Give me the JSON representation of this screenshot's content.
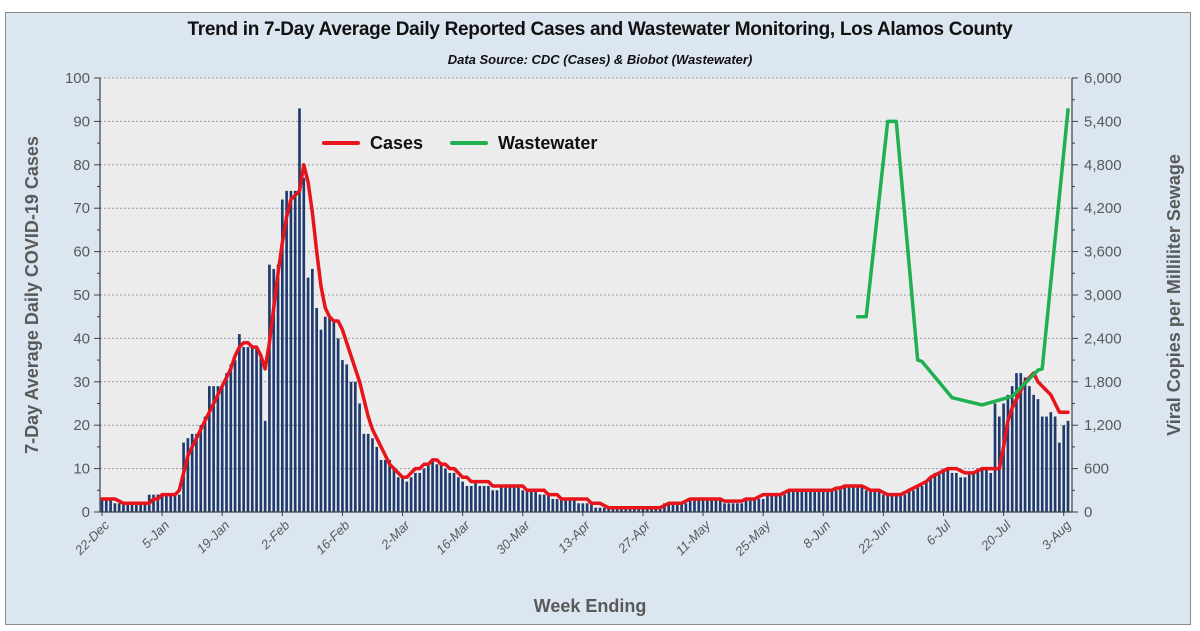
{
  "chart_data": {
    "type": "bar",
    "title": "Trend in 7-Day Average Daily Reported Cases and Wastewater Monitoring, Los Alamos County",
    "subtitle": "Data Source: CDC (Cases) & Biobot (Wastewater)",
    "xlabel": "Week Ending",
    "ylabel": "7-Day Average Daily COVID-19 Cases",
    "y2label": "Viral Copies per Milliliter Sewage",
    "ylim": [
      0,
      100
    ],
    "y2lim": [
      0,
      6000
    ],
    "yticks": [
      "0",
      "10",
      "20",
      "30",
      "40",
      "50",
      "60",
      "70",
      "80",
      "90",
      "100"
    ],
    "y2ticks": [
      "0",
      "600",
      "1,200",
      "1,800",
      "2,400",
      "3,000",
      "3,600",
      "4,200",
      "4,800",
      "5,400",
      "6,000"
    ],
    "xticks": [
      "22-Dec",
      "5-Jan",
      "19-Jan",
      "2-Feb",
      "16-Feb",
      "2-Mar",
      "16-Mar",
      "30-Mar",
      "13-Apr",
      "27-Apr",
      "11-May",
      "25-May",
      "8-Jun",
      "22-Jun",
      "6-Jul",
      "20-Jul",
      "3-Aug"
    ],
    "grid": true,
    "legend": {
      "placement": "top-left",
      "entries": [
        {
          "name": "Cases",
          "color": "#e8141b"
        },
        {
          "name": "Wastewater",
          "color": "#1fb04f"
        }
      ]
    },
    "start_date": "22-Dec",
    "end_date": "3-Aug",
    "bars": {
      "name": "Daily Cases",
      "color": "#1f3a6e",
      "values": [
        3,
        3,
        3,
        2,
        2,
        2,
        2,
        2,
        2,
        2,
        2,
        4,
        4,
        4,
        4,
        4,
        4,
        4,
        4,
        16,
        17,
        18,
        18,
        20,
        22,
        29,
        29,
        29,
        29,
        32,
        34,
        35,
        41,
        38,
        38,
        38,
        38,
        36,
        21,
        57,
        56,
        57,
        72,
        74,
        74,
        74,
        93,
        77,
        54,
        56,
        47,
        42,
        45,
        45,
        44,
        40,
        35,
        34,
        30,
        30,
        25,
        18,
        18,
        17,
        15,
        12,
        12,
        12,
        10,
        8,
        8,
        7,
        8,
        9,
        9,
        10,
        11,
        12,
        11,
        11,
        10,
        9,
        9,
        8,
        7,
        6,
        6,
        7,
        6,
        6,
        6,
        5,
        5,
        6,
        6,
        6,
        6,
        6,
        5,
        5,
        5,
        5,
        4,
        4,
        4,
        3,
        3,
        3,
        3,
        3,
        3,
        2,
        2,
        2,
        2,
        1,
        1,
        1,
        1,
        1,
        1,
        1,
        1,
        1,
        1,
        1,
        1,
        1,
        1,
        1,
        1,
        2,
        2,
        2,
        2,
        2,
        2,
        3,
        3,
        3,
        3,
        3,
        3,
        3,
        3,
        2,
        2,
        2,
        2,
        2,
        3,
        3,
        3,
        3,
        3,
        4,
        4,
        4,
        4,
        4,
        5,
        5,
        5,
        5,
        5,
        5,
        5,
        5,
        5,
        5,
        5,
        5,
        6,
        6,
        6,
        6,
        6,
        6,
        5,
        5,
        5,
        5,
        4,
        4,
        4,
        4,
        4,
        4,
        5,
        5,
        6,
        6,
        7,
        8,
        9,
        9,
        10,
        10,
        9,
        9,
        8,
        8,
        9,
        9,
        10,
        10,
        10,
        9,
        25,
        22,
        25,
        27,
        29,
        32,
        32,
        31,
        29,
        27,
        26,
        22,
        22,
        23,
        22,
        16,
        20,
        21,
        21,
        20,
        19,
        16,
        16,
        16,
        20,
        16,
        17,
        15,
        15,
        14,
        14,
        14,
        14,
        9,
        15,
        17,
        15,
        17,
        19,
        19,
        19,
        20,
        23,
        16,
        17,
        9,
        10,
        9,
        10,
        9,
        8,
        8,
        8,
        9,
        8,
        8,
        8,
        8,
        8,
        8,
        8,
        8,
        8,
        8,
        8,
        7,
        7
      ],
      "trim_to_days": 226
    },
    "cases_line": {
      "name": "Cases",
      "color": "#e8141b",
      "values": [
        3,
        3,
        3,
        3,
        2.5,
        2,
        2,
        2,
        2,
        2,
        2,
        2,
        3,
        3,
        4,
        4,
        4,
        4,
        5,
        9,
        13,
        15,
        17,
        19,
        21,
        23,
        25,
        27,
        29,
        31,
        33,
        36,
        38,
        39,
        39,
        38,
        38,
        36,
        33,
        39,
        47,
        55,
        62,
        68,
        72,
        73,
        74,
        80,
        76,
        69,
        60,
        52,
        47,
        45,
        44,
        44,
        42,
        39,
        36,
        33,
        30,
        26,
        22,
        19,
        17,
        15,
        13,
        11,
        10,
        9,
        8,
        8,
        9,
        10,
        10,
        11,
        11,
        12,
        12,
        11,
        11,
        10,
        10,
        9,
        8,
        8,
        7,
        7,
        7,
        7,
        7,
        6,
        6,
        6,
        6,
        6,
        6,
        6,
        6,
        5,
        5,
        5,
        5,
        5,
        4,
        4,
        4,
        3,
        3,
        3,
        3,
        3,
        3,
        3,
        2,
        2,
        2,
        1.5,
        1,
        1,
        1,
        1,
        1,
        1,
        1,
        1,
        1,
        1,
        1,
        1,
        1,
        1.5,
        2,
        2,
        2,
        2,
        2.5,
        3,
        3,
        3,
        3,
        3,
        3,
        3,
        3,
        2.5,
        2.5,
        2.5,
        2.5,
        2.5,
        3,
        3,
        3,
        3.5,
        4,
        4,
        4,
        4,
        4,
        4.5,
        5,
        5,
        5,
        5,
        5,
        5,
        5,
        5,
        5,
        5,
        5,
        5.5,
        5.5,
        6,
        6,
        6,
        6,
        6,
        5.5,
        5,
        5,
        5,
        4.5,
        4,
        4,
        4,
        4,
        4.5,
        5,
        5.5,
        6,
        6.5,
        7,
        8,
        8.5,
        9,
        9.5,
        10,
        10,
        10,
        9.5,
        9,
        9,
        9,
        9.5,
        10,
        10,
        10,
        10,
        10,
        15,
        21,
        24,
        26,
        28,
        30,
        31,
        32,
        30,
        29,
        28,
        27,
        25,
        23,
        23,
        23,
        22,
        22,
        22,
        20,
        19,
        19,
        18,
        18,
        17,
        17,
        16,
        16,
        16,
        15,
        15,
        14,
        13,
        12,
        12,
        11,
        13,
        15,
        17,
        18,
        18,
        19,
        19,
        20,
        20,
        19,
        18,
        15,
        13,
        12,
        10,
        10,
        10,
        9,
        9,
        9,
        9,
        8,
        8,
        8,
        8,
        8,
        8,
        7.5,
        7.5,
        7.5,
        7.5,
        7.5,
        7.5,
        7.5,
        7
      ],
      "trim_to_days": 226
    },
    "wastewater_line": {
      "name": "Wastewater",
      "color": "#1fb04f",
      "points": [
        {
          "day": 176,
          "value": 2700
        },
        {
          "day": 178,
          "value": 2700
        },
        {
          "day": 183,
          "value": 5400
        },
        {
          "day": 185,
          "value": 5400
        },
        {
          "day": 190,
          "value": 2100
        },
        {
          "day": 191,
          "value": 2080
        },
        {
          "day": 198,
          "value": 1580
        },
        {
          "day": 205,
          "value": 1480
        },
        {
          "day": 212,
          "value": 1600
        },
        {
          "day": 218,
          "value": 1960
        },
        {
          "day": 219,
          "value": 1980
        },
        {
          "day": 225,
          "value": 5560
        }
      ]
    }
  }
}
